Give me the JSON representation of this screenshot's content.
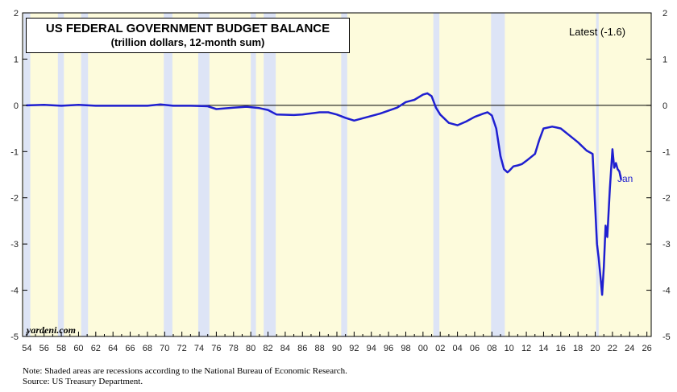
{
  "chart_data": {
    "type": "line",
    "title": "US FEDERAL GOVERNMENT BUDGET BALANCE",
    "subtitle": "(trillion dollars, 12-month sum)",
    "xlim": [
      1953.5,
      2026.5
    ],
    "ylim": [
      -5,
      2
    ],
    "x_ticks": [
      1954,
      1956,
      1958,
      1960,
      1962,
      1964,
      1966,
      1968,
      1970,
      1972,
      1974,
      1976,
      1978,
      1980,
      1982,
      1984,
      1986,
      1988,
      1990,
      1992,
      1994,
      1996,
      1998,
      2000,
      2002,
      2004,
      2006,
      2008,
      2010,
      2012,
      2014,
      2016,
      2018,
      2020,
      2022,
      2024,
      2026
    ],
    "x_tick_labels": [
      "54",
      "56",
      "58",
      "60",
      "62",
      "64",
      "66",
      "68",
      "70",
      "72",
      "74",
      "76",
      "78",
      "80",
      "82",
      "84",
      "86",
      "88",
      "90",
      "92",
      "94",
      "96",
      "98",
      "00",
      "02",
      "04",
      "06",
      "08",
      "10",
      "12",
      "14",
      "16",
      "18",
      "20",
      "22",
      "24",
      "26"
    ],
    "y_ticks": [
      -5,
      -4,
      -3,
      -2,
      -1,
      0,
      1,
      2
    ],
    "y_tick_labels": [
      "-5",
      "-4",
      "-3",
      "-2",
      "-1",
      "0",
      "1",
      "2"
    ],
    "series": [
      {
        "color": "#1f1fd0",
        "x": [
          1954,
          1956,
          1958,
          1960,
          1962,
          1965,
          1968,
          1969.5,
          1971,
          1973,
          1975,
          1976,
          1978,
          1979.5,
          1981,
          1982,
          1983,
          1985,
          1986,
          1988,
          1989,
          1990,
          1991,
          1992,
          1993,
          1995,
          1997,
          1998,
          1999,
          2000,
          2000.5,
          2001,
          2001.5,
          2002,
          2003,
          2004,
          2005,
          2006,
          2007,
          2007.5,
          2008,
          2008.5,
          2009,
          2009.4,
          2009.8,
          2010,
          2010.5,
          2011,
          2011.5,
          2012,
          2013,
          2013.5,
          2014,
          2015,
          2015.5,
          2016,
          2017,
          2018,
          2019,
          2019.7,
          2020.0,
          2020.2,
          2020.4,
          2020.6,
          2020.8,
          2021.0,
          2021.2,
          2021.4,
          2021.7,
          2021.9,
          2022.0,
          2022.2,
          2022.4,
          2022.6,
          2022.8,
          2023.0
        ],
        "y": [
          0,
          0.01,
          -0.01,
          0.01,
          -0.01,
          -0.01,
          -0.01,
          0.02,
          -0.01,
          -0.01,
          -0.02,
          -0.08,
          -0.05,
          -0.03,
          -0.06,
          -0.1,
          -0.2,
          -0.21,
          -0.2,
          -0.15,
          -0.15,
          -0.2,
          -0.27,
          -0.33,
          -0.28,
          -0.18,
          -0.05,
          0.07,
          0.12,
          0.23,
          0.26,
          0.2,
          -0.05,
          -0.2,
          -0.38,
          -0.43,
          -0.35,
          -0.25,
          -0.18,
          -0.15,
          -0.22,
          -0.5,
          -1.1,
          -1.38,
          -1.45,
          -1.42,
          -1.32,
          -1.3,
          -1.27,
          -1.2,
          -1.05,
          -0.75,
          -0.5,
          -0.46,
          -0.48,
          -0.5,
          -0.65,
          -0.8,
          -0.98,
          -1.05,
          -2.2,
          -3.0,
          -3.3,
          -3.7,
          -4.1,
          -3.5,
          -2.6,
          -2.85,
          -1.8,
          -1.25,
          -0.95,
          -1.35,
          -1.25,
          -1.38,
          -1.43,
          -1.6
        ]
      }
    ],
    "recessions": [
      [
        1953.6,
        1954.4
      ],
      [
        1957.6,
        1958.3
      ],
      [
        1960.3,
        1961.1
      ],
      [
        1969.9,
        1970.9
      ],
      [
        1973.9,
        1975.2
      ],
      [
        1980.0,
        1980.6
      ],
      [
        1981.5,
        1982.9
      ],
      [
        1990.5,
        1991.2
      ],
      [
        2001.2,
        2001.9
      ],
      [
        2007.9,
        2009.5
      ],
      [
        2020.1,
        2020.4
      ]
    ],
    "latest_label": "Latest (-1.6)",
    "end_label": "Jan",
    "grid": false,
    "colors": {
      "plot_bg": "#fdfbdc",
      "recession": "#dde4f6",
      "line": "#1f1fd0"
    }
  },
  "brand": "yardeni.com",
  "footnotes": [
    "Note: Shaded areas are recessions according to the National Bureau of Economic Research.",
    "Source: US Treasury Department."
  ]
}
